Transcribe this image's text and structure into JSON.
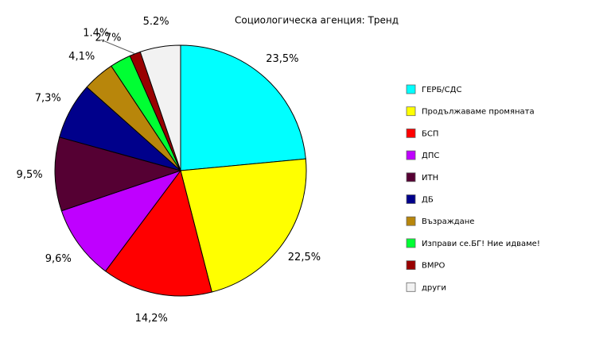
{
  "chart_data": {
    "type": "pie",
    "title": "Социологическа агенция: Тренд",
    "categories": [
      "ГЕРБ/СДС",
      "Продължаваме промяната",
      "БСП",
      "ДПС",
      "ИТН",
      "ДБ",
      "Възраждане",
      "Изправи се.БГ! Ние идваме!",
      "ВМРО",
      "други"
    ],
    "values": [
      23.5,
      22.5,
      14.2,
      9.6,
      9.5,
      7.3,
      4.1,
      2.7,
      1.4,
      5.2
    ],
    "value_labels": [
      "23,5%",
      "22,5%",
      "14,2%",
      "9,6%",
      "9,5%",
      "7,3%",
      "4,1%",
      "2,7%",
      "1.4%",
      "5.2%"
    ],
    "colors": [
      "#00ffff",
      "#ffff00",
      "#ff0000",
      "#bf00ff",
      "#550033",
      "#00008b",
      "#b8860b",
      "#00ff33",
      "#990000",
      "#f2f2f2"
    ],
    "legend": "right"
  }
}
